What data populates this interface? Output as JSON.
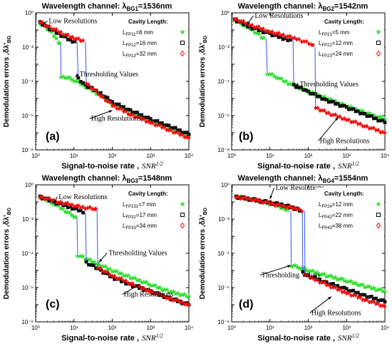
{
  "chart_data": [
    {
      "type": "scatter",
      "panel_label": "(a)",
      "title_prefix": "Wavelength channel: λ",
      "title_sub": "BG1",
      "title_suffix": "=1536nm",
      "xlabel": "Signal-to-noise rate ,",
      "xlabel_var": "SNR",
      "xlabel_sup": "1/2",
      "ylabel": "Demodulation errors ,δλ'",
      "ylabel_sub": "BG",
      "xscale": "log",
      "yscale": "log",
      "xlim": [
        1,
        10000
      ],
      "ylim": [
        1e-08,
        1
      ],
      "x_ticks": [
        "10⁰",
        "10¹",
        "10²",
        "10³",
        "10⁴"
      ],
      "y_ticks": [
        "10⁰",
        "10⁻²",
        "10⁻⁴",
        "10⁻⁶",
        "10⁻⁸"
      ],
      "legend_title": "Cavity Length:",
      "legend_placement": "top-right",
      "series": [
        {
          "name": "L",
          "name_sub": "FP11",
          "name_value": "=8 mm",
          "marker": "star",
          "color": "#33dd33",
          "points": [
            [
              1.3,
              0.25
            ],
            [
              2,
              0.12
            ],
            [
              3,
              0.05
            ],
            [
              4,
              0.02
            ],
            [
              4.5,
              0.015
            ],
            [
              4.6,
              0.0002
            ],
            [
              6,
              0.00018
            ],
            [
              10,
              0.00012
            ],
            [
              20,
              5e-05
            ],
            [
              50,
              1.5e-05
            ],
            [
              100,
              5e-06
            ],
            [
              300,
              1.5e-06
            ],
            [
              1000,
              5e-07
            ],
            [
              3000,
              2e-07
            ],
            [
              10000,
              6e-08
            ]
          ]
        },
        {
          "name": "L",
          "name_sub": "FP12",
          "name_value": "=16 mm",
          "marker": "square",
          "color": "#111111",
          "points": [
            [
              1.3,
              0.28
            ],
            [
              2,
              0.15
            ],
            [
              4,
              0.06
            ],
            [
              8,
              0.025
            ],
            [
              12,
              0.02
            ],
            [
              13,
              0.00015
            ],
            [
              20,
              6e-05
            ],
            [
              50,
              2e-05
            ],
            [
              100,
              6e-06
            ],
            [
              300,
              2e-06
            ],
            [
              1000,
              6e-07
            ],
            [
              3000,
              2.5e-07
            ],
            [
              10000,
              8e-08
            ]
          ]
        },
        {
          "name": "L",
          "name_sub": "FP13",
          "name_value": "=32 mm",
          "marker": "diamond",
          "color": "#ee1111",
          "points": [
            [
              1.3,
              0.3
            ],
            [
              2,
              0.18
            ],
            [
              4,
              0.08
            ],
            [
              8,
              0.04
            ],
            [
              15,
              0.025
            ],
            [
              20,
              0.02
            ],
            [
              21,
              8e-05
            ],
            [
              50,
              1.5e-05
            ],
            [
              100,
              4e-06
            ],
            [
              300,
              1.2e-06
            ],
            [
              1000,
              4e-07
            ],
            [
              3000,
              1.5e-07
            ],
            [
              10000,
              5e-08
            ]
          ]
        }
      ],
      "annotations": [
        {
          "text": "Low Resolutions",
          "x": 2.2,
          "y": 0.25,
          "arrow_to": [
            1.5,
            0.2
          ]
        },
        {
          "text": "Thresholding Values",
          "x": 14,
          "y": 0.0002,
          "arrow_to": [
            11,
            0.00018
          ]
        },
        {
          "text": "High Resolutions",
          "x": 28,
          "y": 5e-07,
          "arrow_to": [
            100,
            2e-06
          ]
        }
      ]
    },
    {
      "type": "scatter",
      "panel_label": "(b)",
      "title_prefix": "Wavelength channel: λ",
      "title_sub": "BG2",
      "title_suffix": "=1542nm",
      "xlabel": "Signal-to-noise rate ,",
      "xlabel_var": "SNR",
      "xlabel_sup": "1/2",
      "ylabel": "Demodulation errors ,δλ'",
      "ylabel_sub": "BG",
      "xscale": "log",
      "yscale": "log",
      "xlim": [
        1,
        10000
      ],
      "ylim": [
        1e-08,
        1
      ],
      "x_ticks": [
        "10⁰",
        "10¹",
        "10²",
        "10³",
        "10⁴"
      ],
      "y_ticks": [
        "10⁰",
        "10⁻²",
        "10⁻⁴",
        "10⁻⁶",
        "10⁻⁸"
      ],
      "legend_title": "Cavity Length:",
      "legend_placement": "top-right",
      "series": [
        {
          "name": "L",
          "name_sub": "FP21",
          "name_value": "=5 mm",
          "marker": "star",
          "color": "#33dd33",
          "points": [
            [
              1.2,
              0.4
            ],
            [
              2,
              0.2
            ],
            [
              4,
              0.08
            ],
            [
              6,
              0.04
            ],
            [
              8,
              0.03
            ],
            [
              8.5,
              0.0003
            ],
            [
              15,
              0.00018
            ],
            [
              30,
              8e-05
            ],
            [
              100,
              2.5e-05
            ],
            [
              300,
              1e-05
            ],
            [
              1000,
              3.5e-06
            ],
            [
              3000,
              1.5e-06
            ],
            [
              10000,
              6e-07
            ]
          ]
        },
        {
          "name": "L",
          "name_sub": "FP22",
          "name_value": "=12 mm",
          "marker": "square",
          "color": "#111111",
          "points": [
            [
              1.2,
              0.4
            ],
            [
              3,
              0.15
            ],
            [
              10,
              0.06
            ],
            [
              25,
              0.03
            ],
            [
              40,
              0.025
            ],
            [
              42,
              6e-05
            ],
            [
              100,
              2.5e-05
            ],
            [
              300,
              8e-06
            ],
            [
              1000,
              3e-06
            ],
            [
              3000,
              1.2e-06
            ],
            [
              10000,
              4e-07
            ]
          ]
        },
        {
          "name": "L",
          "name_sub": "FP23",
          "name_value": "=24 mm",
          "marker": "diamond",
          "color": "#ee1111",
          "points": [
            [
              1.2,
              0.45
            ],
            [
              3,
              0.2
            ],
            [
              10,
              0.08
            ],
            [
              50,
              0.03
            ],
            [
              120,
              0.015
            ],
            [
              150,
              0.01
            ],
            [
              155,
              3e-06
            ],
            [
              300,
              1.5e-06
            ],
            [
              1000,
              6e-07
            ],
            [
              3000,
              2.5e-07
            ],
            [
              10000,
              1e-07
            ]
          ]
        }
      ],
      "annotations": [
        {
          "text": "Low Resolutions",
          "x": 4,
          "y": 0.5,
          "arrow_to": [
            2.5,
            0.2
          ]
        },
        {
          "text": "Thresholding Values",
          "x": 60,
          "y": 5e-05,
          "arrow_to": [
            45,
            6e-05
          ]
        },
        {
          "text": "High Resolutions",
          "x": 200,
          "y": 2.5e-08,
          "arrow_to": [
            600,
            8e-07
          ]
        }
      ]
    },
    {
      "type": "scatter",
      "panel_label": "(c)",
      "title_prefix": "Wavelength channel: λ",
      "title_sub": "BG3",
      "title_suffix": "=1548nm",
      "xlabel": "Signal-to-noise rate ,",
      "xlabel_var": "SNR",
      "xlabel_sup": "1/2",
      "ylabel": "Demodulation errors ,δλ'",
      "ylabel_sub": "BG",
      "xscale": "log",
      "yscale": "log",
      "xlim": [
        1,
        10000
      ],
      "ylim": [
        1e-08,
        1
      ],
      "x_ticks": [
        "10⁰",
        "10¹",
        "10²",
        "10³",
        "10⁴"
      ],
      "y_ticks": [
        "10⁰",
        "10⁻²",
        "10⁻⁴",
        "10⁻⁶",
        "10⁻⁸"
      ],
      "legend_title": "Cavity Length:",
      "legend_placement": "top-right",
      "series": [
        {
          "name": "L",
          "name_sub": "FP231",
          "name_value": "=7 mm",
          "marker": "star",
          "color": "#33dd33",
          "points": [
            [
              1.3,
              0.2
            ],
            [
              3,
              0.08
            ],
            [
              6,
              0.03
            ],
            [
              10,
              0.015
            ],
            [
              12,
              0.012
            ],
            [
              12.5,
              8e-05
            ],
            [
              20,
              5e-05
            ],
            [
              50,
              2e-05
            ],
            [
              100,
              1e-05
            ],
            [
              300,
              4e-06
            ],
            [
              1000,
              1.5e-06
            ],
            [
              3000,
              6e-07
            ],
            [
              10000,
              3e-07
            ]
          ]
        },
        {
          "name": "L",
          "name_sub": "FP32",
          "name_value": "=17 mm",
          "marker": "square",
          "color": "#111111",
          "points": [
            [
              1.3,
              0.2
            ],
            [
              3,
              0.1
            ],
            [
              8,
              0.05
            ],
            [
              15,
              0.03
            ],
            [
              20,
              0.025
            ],
            [
              21,
              3e-05
            ],
            [
              50,
              1e-05
            ],
            [
              100,
              4e-06
            ],
            [
              300,
              1.5e-06
            ],
            [
              1000,
              6e-07
            ],
            [
              3000,
              2.5e-07
            ],
            [
              10000,
              1e-07
            ]
          ]
        },
        {
          "name": "L",
          "name_sub": "FP33",
          "name_value": "=34 mm",
          "marker": "diamond",
          "color": "#ee1111",
          "points": [
            [
              1.3,
              0.2
            ],
            [
              4,
              0.1
            ],
            [
              15,
              0.05
            ],
            [
              35,
              0.04
            ],
            [
              40,
              0.035
            ],
            [
              42,
              1.5e-05
            ],
            [
              100,
              5e-06
            ],
            [
              300,
              1.8e-06
            ],
            [
              1000,
              6e-07
            ],
            [
              3000,
              2.5e-07
            ],
            [
              10000,
              1e-07
            ]
          ]
        }
      ],
      "annotations": [
        {
          "text": "Low Resolutions",
          "x": 4,
          "y": 0.15,
          "arrow_to": [
            3,
            0.08
          ]
        },
        {
          "text": "Thresholding Values",
          "x": 80,
          "y": 8e-05,
          "arrow_to": [
            45,
            3e-05
          ]
        },
        {
          "text": "High Resolutions",
          "x": 200,
          "y": 3e-07,
          "arrow_to": [
            500,
            1.5e-06
          ]
        }
      ]
    },
    {
      "type": "scatter",
      "panel_label": "(d)",
      "title_prefix": "Wavelength channel: λ",
      "title_sub": "BG4",
      "title_suffix": "=1554nm",
      "xlabel": "Signal-to-noise rate ,",
      "xlabel_var": "SNR",
      "xlabel_sup": "1/2",
      "ylabel": "Demodulation errors ,δλ'",
      "ylabel_sub": "BG",
      "xscale": "log",
      "yscale": "log",
      "xlim": [
        1,
        10000
      ],
      "ylim": [
        1e-08,
        1
      ],
      "x_ticks": [
        "10⁰",
        "10¹",
        "10²",
        "10³",
        "10⁴"
      ],
      "y_ticks": [
        "10⁰",
        "10⁻²",
        "10⁻⁴",
        "10⁻⁶",
        "10⁻⁸"
      ],
      "legend_title": "Cavity Length:",
      "legend_placement": "top-right",
      "series": [
        {
          "name": "L",
          "name_sub": "FP24",
          "name_value": "=12 mm",
          "marker": "star",
          "color": "#33dd33",
          "points": [
            [
              1.3,
              0.2
            ],
            [
              3,
              0.15
            ],
            [
              10,
              0.08
            ],
            [
              25,
              0.04
            ],
            [
              35,
              0.03
            ],
            [
              36,
              2e-05
            ],
            [
              60,
              1.5e-05
            ],
            [
              100,
              1e-05
            ],
            [
              300,
              5e-06
            ],
            [
              1000,
              2.5e-06
            ],
            [
              3000,
              1.2e-06
            ],
            [
              10000,
              6e-07
            ]
          ]
        },
        {
          "name": "L",
          "name_sub": "FP42",
          "name_value": "=22 mm",
          "marker": "square",
          "color": "#111111",
          "points": [
            [
              1.3,
              0.2
            ],
            [
              5,
              0.12
            ],
            [
              20,
              0.07
            ],
            [
              50,
              0.04
            ],
            [
              70,
              0.03
            ],
            [
              72,
              8e-06
            ],
            [
              100,
              5e-06
            ],
            [
              300,
              2e-06
            ],
            [
              1000,
              8e-07
            ],
            [
              3000,
              3.5e-07
            ],
            [
              10000,
              1.5e-07
            ]
          ]
        },
        {
          "name": "L",
          "name_sub": "FP43",
          "name_value": "=38 mm",
          "marker": "diamond",
          "color": "#ee1111",
          "points": [
            [
              1.3,
              0.2
            ],
            [
              5,
              0.12
            ],
            [
              20,
              0.06
            ],
            [
              50,
              0.04
            ],
            [
              80,
              0.03
            ],
            [
              82,
              6e-06
            ],
            [
              150,
              3e-06
            ],
            [
              300,
              1.5e-06
            ],
            [
              1000,
              5e-07
            ],
            [
              3000,
              2e-07
            ],
            [
              10000,
              8e-08
            ]
          ]
        }
      ],
      "annotations": [
        {
          "text": "Low Resolutions",
          "x": 14,
          "y": 0.5,
          "arrow_to": [
            10,
            0.15
          ]
        },
        {
          "text": "Thresholding Values",
          "x": 6,
          "y": 4e-06,
          "arrow_to": [
            35,
            2e-05
          ]
        },
        {
          "text": "High Resolutions",
          "x": 120,
          "y": 2.5e-08,
          "arrow_to": [
            400,
            3e-07
          ]
        }
      ]
    }
  ]
}
